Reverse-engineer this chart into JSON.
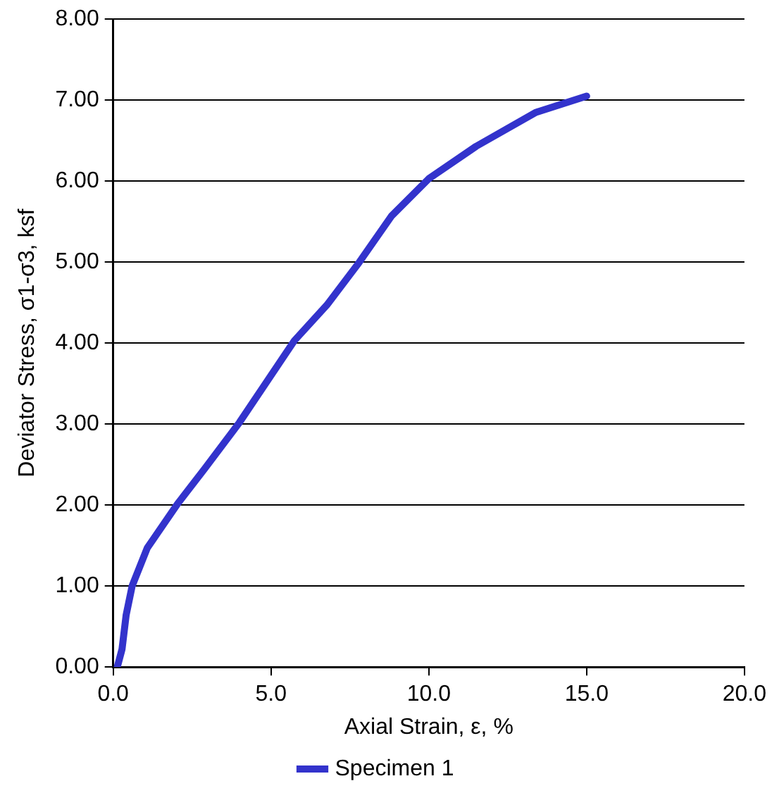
{
  "chart_data": {
    "type": "line",
    "xlabel": "Axial Strain, ε, %",
    "ylabel": "Deviator Stress, σ1-σ3, ksf",
    "xlim": [
      0,
      20
    ],
    "ylim": [
      0,
      8
    ],
    "xticks": [
      {
        "value": 0,
        "label": "0.0"
      },
      {
        "value": 5,
        "label": "5.0"
      },
      {
        "value": 10,
        "label": "10.0"
      },
      {
        "value": 15,
        "label": "15.0"
      },
      {
        "value": 20,
        "label": "20.0"
      }
    ],
    "yticks": [
      {
        "value": 0,
        "label": "0.00"
      },
      {
        "value": 1,
        "label": "1.00"
      },
      {
        "value": 2,
        "label": "2.00"
      },
      {
        "value": 3,
        "label": "3.00"
      },
      {
        "value": 4,
        "label": "4.00"
      },
      {
        "value": 5,
        "label": "5.00"
      },
      {
        "value": 6,
        "label": "6.00"
      },
      {
        "value": 7,
        "label": "7.00"
      },
      {
        "value": 8,
        "label": "8.00"
      }
    ],
    "grid": "y",
    "legend": "bottom",
    "marker": "none",
    "line_style": "solid",
    "series": [
      {
        "name": "Specimen 1",
        "color": "#3333cc",
        "x": [
          0.13,
          0.28,
          0.41,
          0.6,
          1.08,
          2.03,
          2.9,
          4.0,
          5.74,
          6.77,
          7.8,
          8.82,
          10.0,
          11.5,
          13.4,
          15.0
        ],
        "values": [
          0,
          0.22,
          0.64,
          1.0,
          1.47,
          2.01,
          2.45,
          3.02,
          4.03,
          4.47,
          5.0,
          5.57,
          6.03,
          6.43,
          6.85,
          7.05
        ]
      }
    ]
  }
}
